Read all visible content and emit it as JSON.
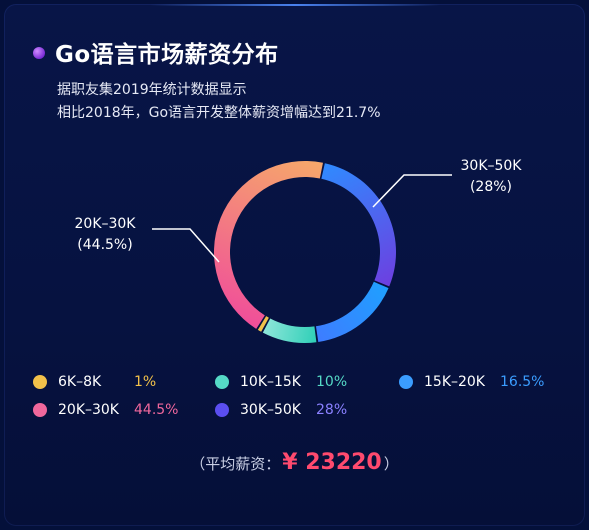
{
  "title": "Go语言市场薪资分布",
  "subtitle_lines": [
    "据职友集2019年统计数据显示",
    "相比2018年，Go语言开发整体薪资增幅达到21.7%"
  ],
  "average": {
    "prefix": "（平均薪资：",
    "value": "¥ 23220",
    "suffix": "）"
  },
  "chart_data": {
    "type": "pie",
    "title": "Go语言市场薪资分布",
    "donut": true,
    "slices": [
      {
        "label": "6K–8K",
        "value": 1,
        "display": "1%",
        "color": "#f2c14a",
        "gradient": [
          "#f2c14a",
          "#f2c14a"
        ]
      },
      {
        "label": "10K–15K",
        "value": 10,
        "display": "10%",
        "color": "#55d9c6",
        "gradient": [
          "#2ecfb7",
          "#8fe6d9"
        ]
      },
      {
        "label": "15K–20K",
        "value": 16.5,
        "display": "16.5%",
        "color": "#3b9dff",
        "gradient": [
          "#1fa0ff",
          "#3e7cff"
        ]
      },
      {
        "label": "20K–30K",
        "value": 44.5,
        "display": "44.5%",
        "color": "#f0679c",
        "gradient": [
          "#f04e9a",
          "#f6a86a"
        ]
      },
      {
        "label": "30K–50K",
        "value": 28,
        "display": "28%",
        "color": "#5b4ef0",
        "gradient": [
          "#2f8bff",
          "#6d3fe0"
        ]
      }
    ],
    "callouts": [
      {
        "label": "30K–50K",
        "value_text": "(28%)"
      },
      {
        "label": "20K–30K",
        "value_text": "(44.5%)"
      }
    ]
  }
}
